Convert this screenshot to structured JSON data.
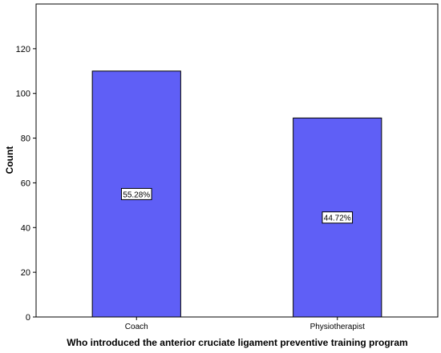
{
  "chart_data": {
    "type": "bar",
    "categories": [
      "Coach",
      "Physiotherapist"
    ],
    "values": [
      110,
      89
    ],
    "data_labels": [
      "55.28%",
      "44.72%"
    ],
    "xlabel": "Who introduced the anterior cruciate ligament preventive training program",
    "ylabel": "Count",
    "ylim": [
      0,
      140
    ],
    "yticks": [
      0,
      20,
      40,
      60,
      80,
      100,
      120
    ],
    "grid": false,
    "bar_color": "#5f5ff6",
    "bar_edge_color": "#000000"
  }
}
